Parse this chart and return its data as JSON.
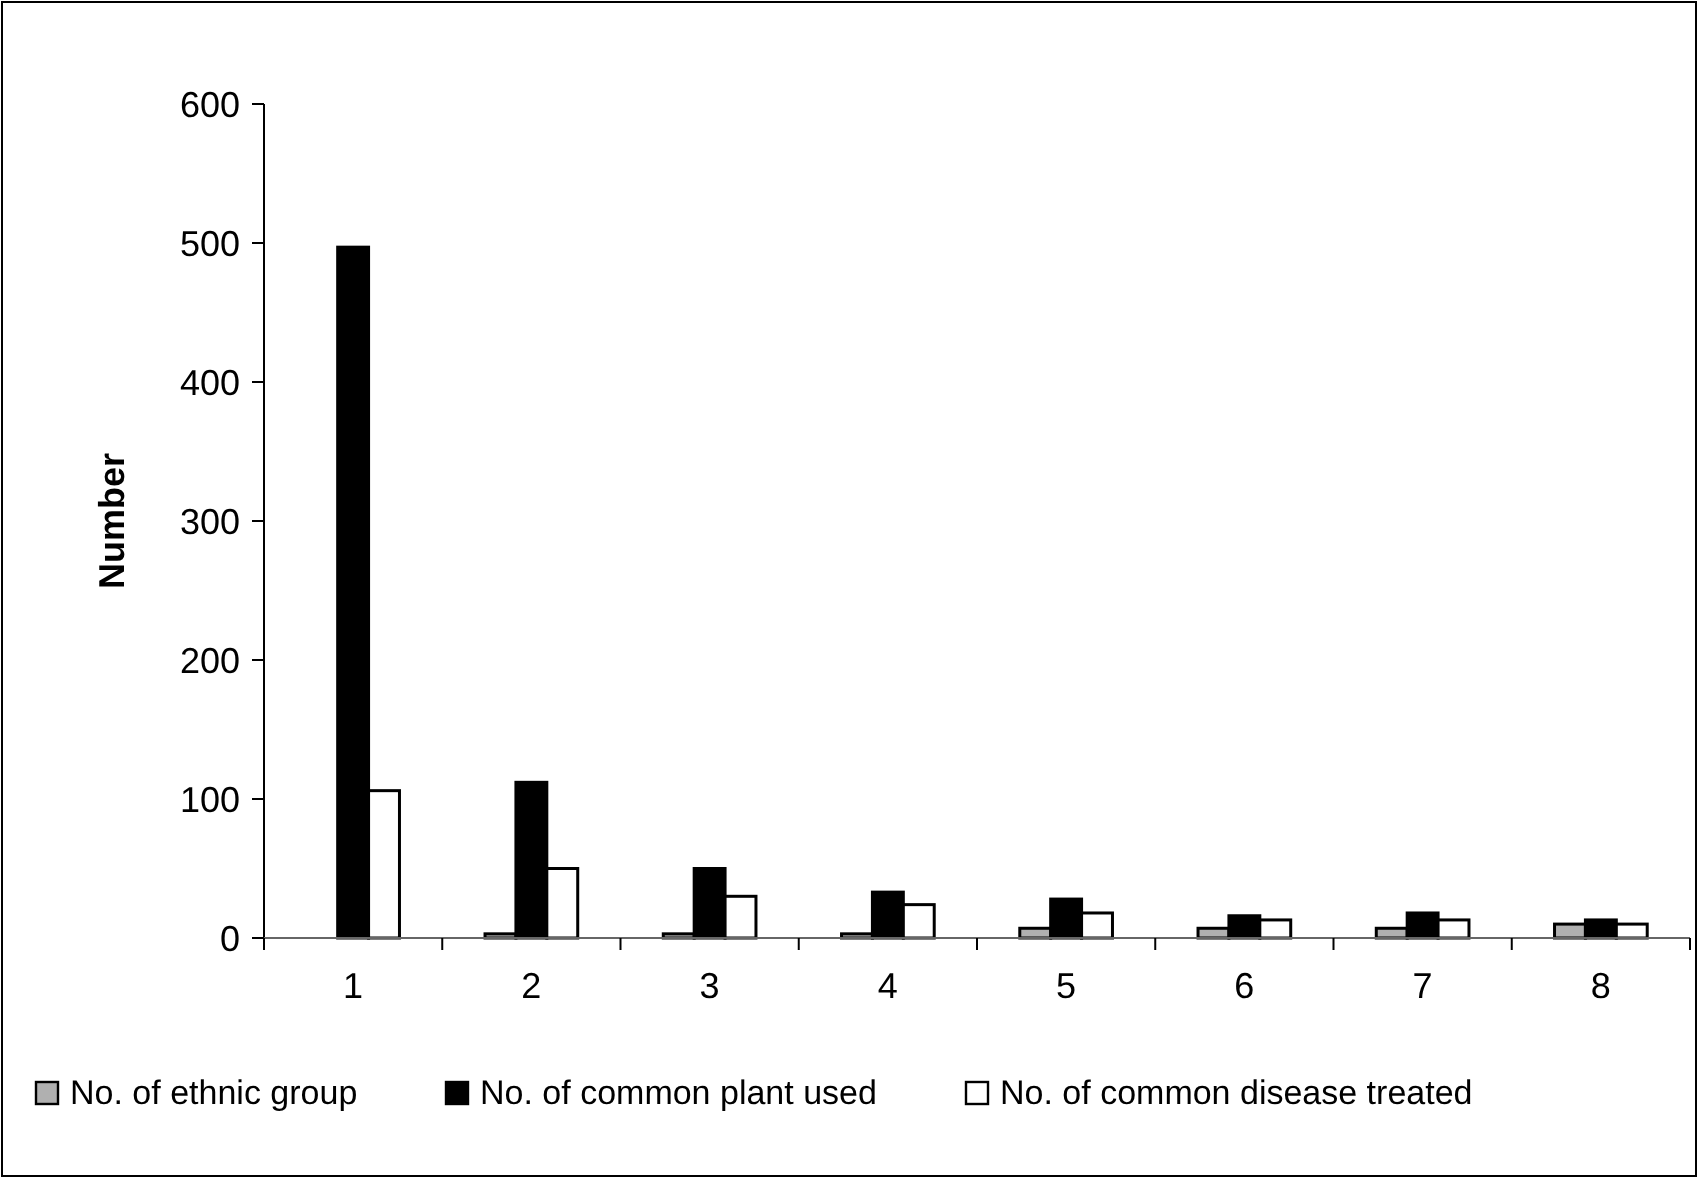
{
  "chart_data": {
    "type": "bar",
    "ylabel": "Number",
    "categories": [
      "1",
      "2",
      "3",
      "4",
      "5",
      "6",
      "7",
      "8"
    ],
    "series": [
      {
        "name": "No. of ethnic group",
        "color": "#b0b0b0",
        "values": [
          0,
          3,
          3,
          3,
          7,
          7,
          7,
          10
        ]
      },
      {
        "name": "No. of common plant used",
        "color": "#000000",
        "values": [
          497,
          112,
          50,
          33,
          28,
          16,
          18,
          13
        ]
      },
      {
        "name": "No. of common disease treated",
        "color": "#ffffff",
        "values": [
          106,
          50,
          30,
          24,
          18,
          13,
          13,
          10
        ]
      }
    ],
    "ylim": [
      0,
      600
    ],
    "yticks": [
      0,
      100,
      200,
      300,
      400,
      500,
      600
    ],
    "grid": false,
    "legend": "bottom"
  }
}
